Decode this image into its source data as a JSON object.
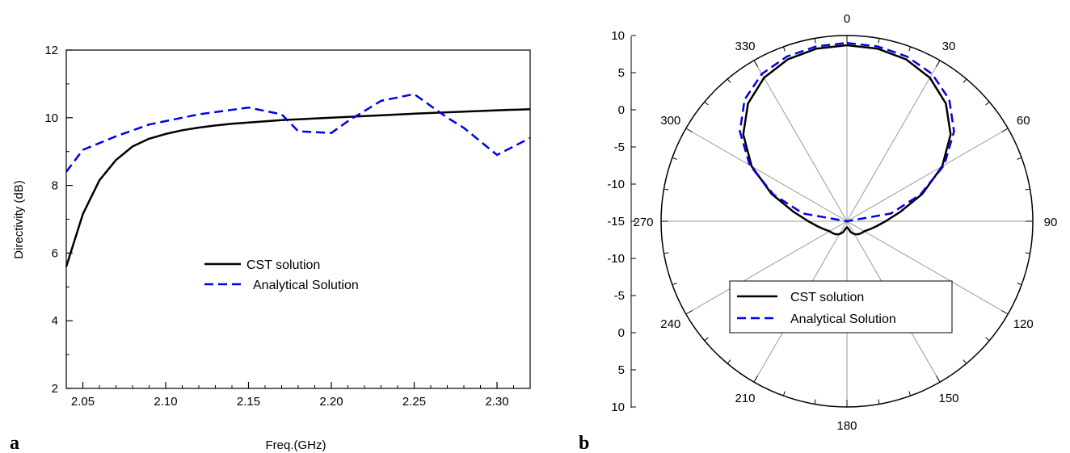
{
  "chart_data": [
    {
      "type": "line",
      "panel_label": "a",
      "xlabel": "Freq.(GHz)",
      "ylabel": "Directivity (dB)",
      "xlim": [
        2.04,
        2.32
      ],
      "ylim": [
        2,
        12
      ],
      "x_ticks": [
        "2.05",
        "2.10",
        "2.15",
        "2.20",
        "2.25",
        "2.30"
      ],
      "y_ticks": [
        "2",
        "4",
        "6",
        "8",
        "10",
        "12"
      ],
      "grid": false,
      "legend_position": "center",
      "series": [
        {
          "name": "CST solution",
          "style": "solid",
          "color": "#000000",
          "x": [
            2.04,
            2.05,
            2.06,
            2.07,
            2.08,
            2.09,
            2.1,
            2.11,
            2.12,
            2.13,
            2.14,
            2.15,
            2.17,
            2.2,
            2.22,
            2.25,
            2.28,
            2.3,
            2.32
          ],
          "y": [
            5.6,
            7.15,
            8.15,
            8.75,
            9.15,
            9.38,
            9.52,
            9.63,
            9.71,
            9.77,
            9.82,
            9.86,
            9.93,
            10.0,
            10.05,
            10.12,
            10.18,
            10.22,
            10.25
          ]
        },
        {
          "name": "Analytical Solution",
          "style": "dashed",
          "color": "#0000e6",
          "x": [
            2.04,
            2.05,
            2.07,
            2.09,
            2.1,
            2.12,
            2.15,
            2.17,
            2.18,
            2.2,
            2.21,
            2.23,
            2.25,
            2.27,
            2.28,
            2.3,
            2.32
          ],
          "y": [
            8.4,
            9.05,
            9.45,
            9.8,
            9.9,
            10.1,
            10.3,
            10.1,
            9.6,
            9.55,
            9.9,
            10.5,
            10.7,
            10.0,
            9.7,
            8.9,
            9.4
          ]
        }
      ]
    },
    {
      "type": "polar",
      "panel_label": "b",
      "angle_ticks": [
        "0",
        "30",
        "60",
        "90",
        "120",
        "150",
        "180",
        "210",
        "240",
        "270",
        "300",
        "330"
      ],
      "radial_ticks_upper": [
        "10",
        "5",
        "0",
        "-5",
        "-10",
        "-15"
      ],
      "radial_ticks_lower": [
        "-10",
        "-5",
        "0",
        "5",
        "10"
      ],
      "rlim": [
        -15,
        10
      ],
      "grid": true,
      "legend_position": "bottom-center",
      "series": [
        {
          "name": "CST solution",
          "style": "solid",
          "color": "#000000",
          "theta": [
            0,
            10,
            20,
            30,
            40,
            50,
            60,
            70,
            80,
            90,
            100,
            110,
            120,
            130,
            140,
            150,
            160,
            170,
            180
          ],
          "r": [
            8.7,
            8.6,
            8.2,
            7.3,
            5.7,
            3.2,
            -0.2,
            -4.2,
            -7.7,
            -9.8,
            -11.0,
            -11.8,
            -12.3,
            -12.5,
            -12.7,
            -13.0,
            -13.4,
            -14.0,
            -14.2
          ]
        },
        {
          "name": "Analytical Solution",
          "style": "dashed",
          "color": "#0000e6",
          "theta": [
            0,
            10,
            20,
            30,
            40,
            50,
            60,
            70,
            80,
            90,
            100,
            110,
            120,
            130,
            140,
            150,
            160,
            170,
            180
          ],
          "r": [
            9.0,
            8.9,
            8.6,
            7.9,
            6.4,
            3.8,
            0.1,
            -4.5,
            -9.0,
            -15,
            -15,
            -15,
            -15,
            -15,
            -15,
            -15,
            -15,
            -15,
            -15
          ]
        }
      ]
    }
  ]
}
